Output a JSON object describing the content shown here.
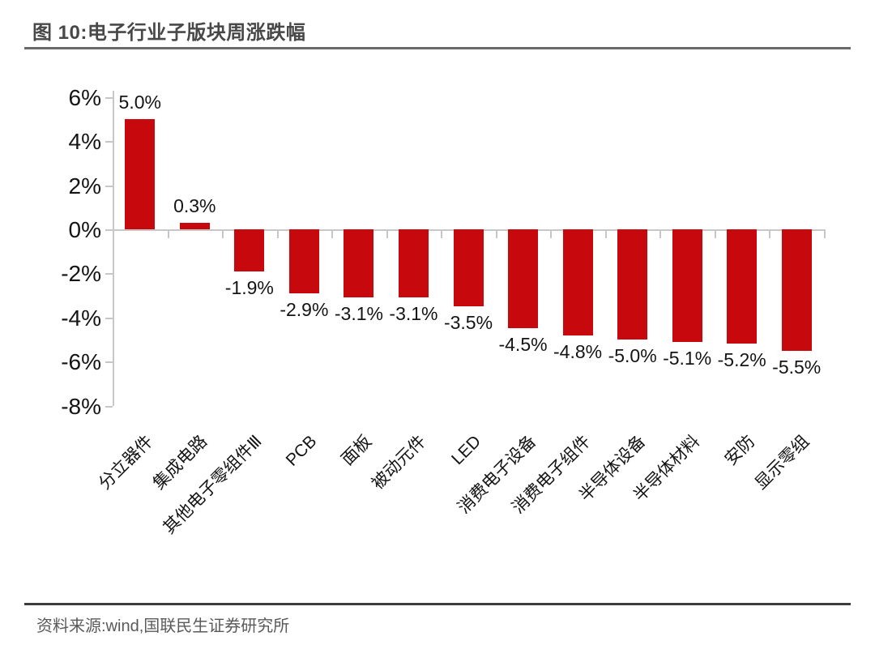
{
  "header": {
    "title": "图 10:电子行业子版块周涨跌幅"
  },
  "footer": {
    "source": "资料来源:wind,国联民生证券研究所"
  },
  "chart_data": {
    "type": "bar",
    "title": "电子行业子版块周涨跌幅",
    "categories": [
      "分立器件",
      "集成电路",
      "其他电子零组件Ⅲ",
      "PCB",
      "面板",
      "被动元件",
      "LED",
      "消费电子设备",
      "消费电子组件",
      "半导体设备",
      "半导体材料",
      "安防",
      "显示零组"
    ],
    "values": [
      5.0,
      0.3,
      -1.9,
      -2.9,
      -3.1,
      -3.1,
      -3.5,
      -4.5,
      -4.8,
      -5.0,
      -5.1,
      -5.2,
      -5.5
    ],
    "value_labels": [
      "5.0%",
      "0.3%",
      "-1.9%",
      "-2.9%",
      "-3.1%",
      "-3.1%",
      "-3.5%",
      "-4.5%",
      "-4.8%",
      "-5.0%",
      "-5.1%",
      "-5.2%",
      "-5.5%"
    ],
    "xlabel": "",
    "ylabel": "",
    "ylim": [
      -8,
      6
    ],
    "ytick_step": 2,
    "ytick_labels": [
      "6%",
      "4%",
      "2%",
      "0%",
      "-2%",
      "-4%",
      "-6%",
      "-8%"
    ],
    "ytick_values": [
      6,
      4,
      2,
      0,
      -2,
      -4,
      -6,
      -8
    ],
    "grid": "off",
    "legend": "none",
    "bar_color": "#c7090e",
    "axis_color": "#c7c7c7",
    "text_color": "#141414"
  }
}
